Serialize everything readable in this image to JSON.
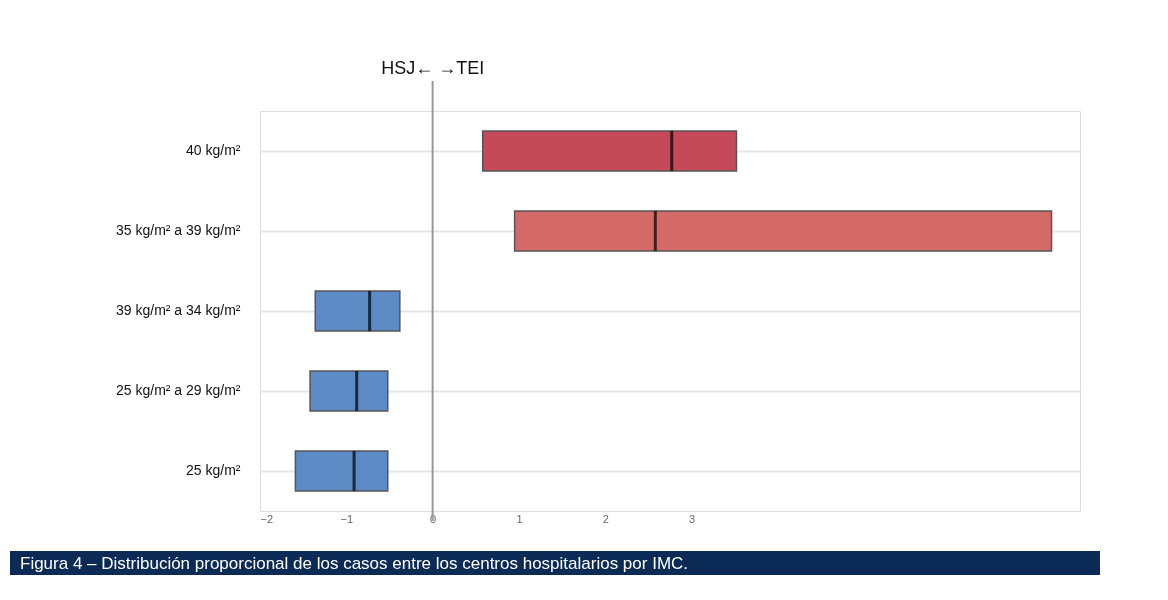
{
  "chart_data": {
    "type": "box",
    "orientation": "horizontal",
    "categories": [
      "40 kg/m²",
      "35 kg/m² a 39 kg/m²",
      "39 kg/m² a 34 kg/m²",
      "25 kg/m² a 29 kg/m²",
      "25  kg/m²"
    ],
    "boxes": [
      {
        "low": 0.58,
        "q1": 0.58,
        "median": 2.77,
        "q3": 3.52,
        "high": 3.52
      },
      {
        "low": 0.95,
        "q1": 0.95,
        "median": 2.58,
        "q3": 7.17,
        "high": 7.17
      },
      {
        "low": -1.36,
        "q1": -1.36,
        "median": -0.73,
        "q3": -0.38,
        "high": -0.38
      },
      {
        "low": -1.42,
        "q1": -1.42,
        "median": -0.88,
        "q3": -0.52,
        "high": -0.52
      },
      {
        "low": -1.59,
        "q1": -1.59,
        "median": -0.91,
        "q3": -0.52,
        "high": -0.52
      }
    ],
    "colors": [
      "#c44a5a",
      "#d46a68",
      "#5b8ac4",
      "#5b8ac4",
      "#5b8ac4"
    ],
    "xlim": [
      -2,
      7.5
    ],
    "xticks": [
      -2,
      -1,
      0,
      1,
      2,
      3
    ],
    "grid": "y",
    "ref_lines": [
      {
        "axis": "x",
        "value": 0,
        "color": "#999999"
      }
    ],
    "annotations": [
      "HSJ←  →TEI",
      "Figura 4 – Distribución proporcional de los casos entre los centros hospitalarios por IMC."
    ]
  }
}
